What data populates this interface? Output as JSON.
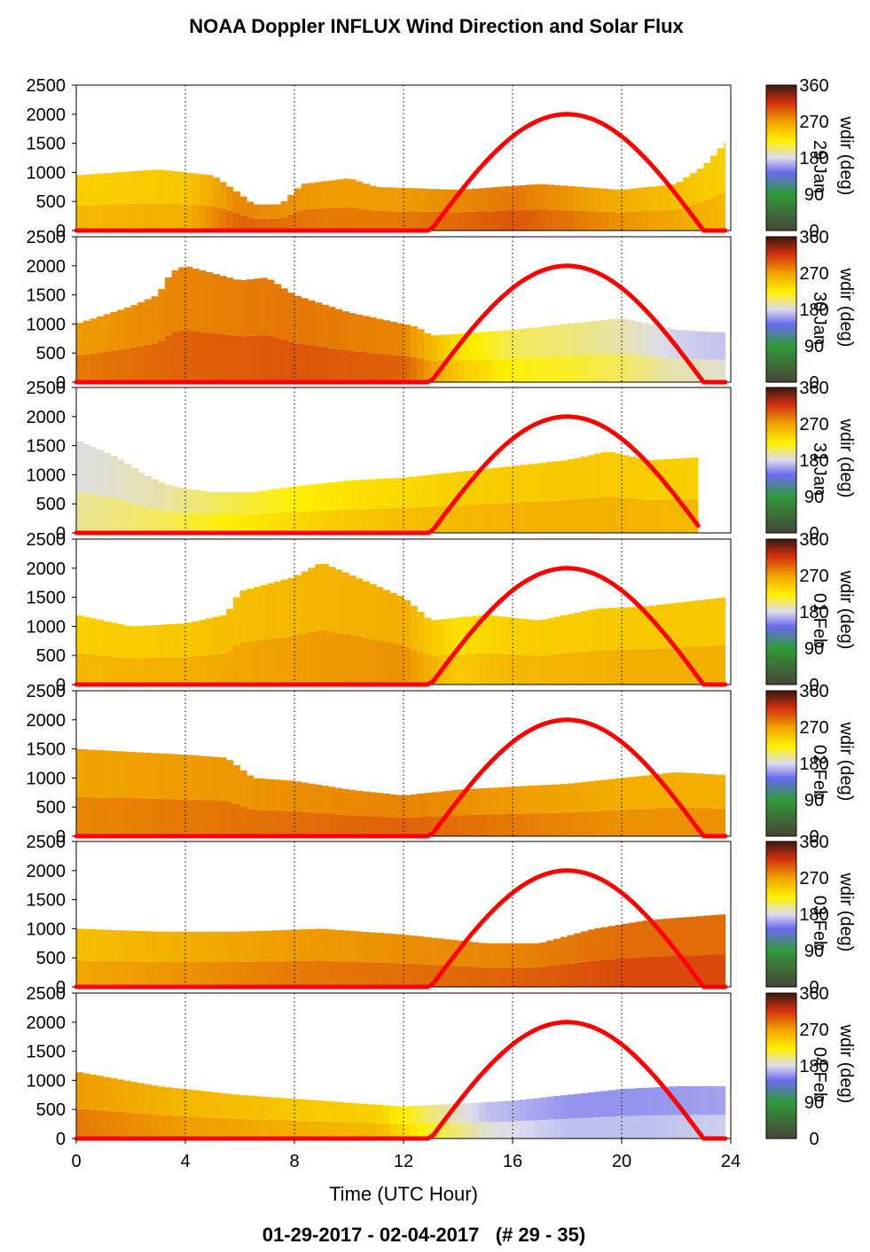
{
  "title": "NOAA Doppler INFLUX Wind Direction and Solar Flux",
  "footer": "01-29-2017 - 02-04-2017   (# 29 - 35)",
  "colors": {
    "flux_line": "#ff0000",
    "wind_ramp": [
      "#4a4438",
      "#2f9a3a",
      "#6b6bf0",
      "#dcdcee",
      "#fff000",
      "#f0a000",
      "#d23010",
      "#3a1a10"
    ]
  },
  "chart_data": {
    "type": "heatmap",
    "xlabel": "Time (UTC Hour)",
    "ylabel": "",
    "xlim": [
      0,
      24
    ],
    "ylim": [
      0,
      2500
    ],
    "x_ticks": [
      "0",
      "4",
      "8",
      "12",
      "16",
      "20",
      "24"
    ],
    "y_ticks": [
      "0",
      "500",
      "1000",
      "1500",
      "2000",
      "2500"
    ],
    "x_grid_lines": [
      4,
      8,
      12,
      16,
      20,
      24
    ],
    "colorbar": {
      "label": "wdir (deg)",
      "ticks": [
        "0",
        "90",
        "180",
        "270",
        "360"
      ],
      "range": [
        0,
        360
      ]
    },
    "solar_flux": {
      "peak_hour": 18,
      "peak_value": 2000,
      "sunrise_hour": 13,
      "sunset_hour": 23
    },
    "panels": [
      {
        "day_label": "29 Jan",
        "end_hour": 23.8,
        "top": [
          [
            0,
            950
          ],
          [
            1.5,
            1000
          ],
          [
            3,
            1050
          ],
          [
            5,
            950
          ],
          [
            5.8,
            700
          ],
          [
            6.5,
            450
          ],
          [
            7.5,
            450
          ],
          [
            8.3,
            800
          ],
          [
            10,
            900
          ],
          [
            11,
            750
          ],
          [
            14,
            700
          ],
          [
            17,
            800
          ],
          [
            20,
            700
          ],
          [
            22,
            800
          ],
          [
            23,
            1100
          ],
          [
            23.8,
            1500
          ]
        ],
        "dir": [
          [
            0,
            250
          ],
          [
            4,
            255
          ],
          [
            6,
            290
          ],
          [
            9,
            280
          ],
          [
            12,
            280
          ],
          [
            16,
            295
          ],
          [
            20,
            270
          ],
          [
            23.8,
            250
          ]
        ]
      },
      {
        "day_label": "30 Jan",
        "end_hour": 23.8,
        "top": [
          [
            0,
            1000
          ],
          [
            2,
            1300
          ],
          [
            3,
            1500
          ],
          [
            3.5,
            1900
          ],
          [
            4,
            2000
          ],
          [
            6,
            1750
          ],
          [
            7,
            1800
          ],
          [
            8,
            1500
          ],
          [
            10,
            1200
          ],
          [
            12.5,
            950
          ],
          [
            13,
            800
          ],
          [
            16,
            900
          ],
          [
            18,
            1000
          ],
          [
            20,
            1100
          ],
          [
            22,
            900
          ],
          [
            23.8,
            850
          ]
        ],
        "dir": [
          [
            0,
            280
          ],
          [
            4,
            290
          ],
          [
            8,
            295
          ],
          [
            12,
            290
          ],
          [
            14,
            240
          ],
          [
            16,
            215
          ],
          [
            18,
            210
          ],
          [
            20,
            200
          ],
          [
            22,
            185
          ],
          [
            23.8,
            180
          ]
        ]
      },
      {
        "day_label": "31 Jan",
        "end_hour": 22.8,
        "top": [
          [
            0,
            1600
          ],
          [
            1.5,
            1300
          ],
          [
            2.5,
            1000
          ],
          [
            3.5,
            800
          ],
          [
            5,
            700
          ],
          [
            6.5,
            700
          ],
          [
            8,
            800
          ],
          [
            10,
            900
          ],
          [
            12,
            950
          ],
          [
            14,
            1050
          ],
          [
            16,
            1150
          ],
          [
            18,
            1250
          ],
          [
            19.5,
            1400
          ],
          [
            21,
            1250
          ],
          [
            22.8,
            1300
          ]
        ],
        "dir": [
          [
            0,
            190
          ],
          [
            3,
            200
          ],
          [
            6,
            220
          ],
          [
            10,
            240
          ],
          [
            14,
            250
          ],
          [
            18,
            255
          ],
          [
            22.8,
            250
          ]
        ]
      },
      {
        "day_label": "01 Feb",
        "end_hour": 23.8,
        "top": [
          [
            0,
            1200
          ],
          [
            2,
            1000
          ],
          [
            4,
            1050
          ],
          [
            5.5,
            1200
          ],
          [
            6,
            1600
          ],
          [
            8,
            1850
          ],
          [
            9,
            2100
          ],
          [
            10.5,
            1800
          ],
          [
            12,
            1500
          ],
          [
            13,
            1100
          ],
          [
            15,
            1200
          ],
          [
            17,
            1100
          ],
          [
            19,
            1300
          ],
          [
            21,
            1350
          ],
          [
            23.8,
            1500
          ]
        ],
        "dir": [
          [
            0,
            250
          ],
          [
            4,
            255
          ],
          [
            8,
            265
          ],
          [
            12,
            270
          ],
          [
            14,
            240
          ],
          [
            16,
            250
          ],
          [
            20,
            255
          ],
          [
            23.8,
            255
          ]
        ]
      },
      {
        "day_label": "02 Feb",
        "end_hour": 23.8,
        "top": [
          [
            0,
            1500
          ],
          [
            2,
            1450
          ],
          [
            4,
            1400
          ],
          [
            5.5,
            1350
          ],
          [
            6.5,
            1000
          ],
          [
            8,
            950
          ],
          [
            10,
            800
          ],
          [
            12,
            700
          ],
          [
            14,
            800
          ],
          [
            16,
            850
          ],
          [
            18,
            900
          ],
          [
            20,
            1000
          ],
          [
            22,
            1100
          ],
          [
            23.8,
            1050
          ]
        ],
        "dir": [
          [
            0,
            275
          ],
          [
            4,
            280
          ],
          [
            8,
            285
          ],
          [
            12,
            290
          ],
          [
            16,
            280
          ],
          [
            20,
            270
          ],
          [
            23.8,
            270
          ]
        ]
      },
      {
        "day_label": "03 Feb",
        "end_hour": 23.8,
        "top": [
          [
            0,
            1000
          ],
          [
            3,
            950
          ],
          [
            6,
            950
          ],
          [
            9,
            1000
          ],
          [
            12,
            900
          ],
          [
            15,
            750
          ],
          [
            17,
            750
          ],
          [
            19,
            1000
          ],
          [
            21,
            1150
          ],
          [
            23.8,
            1250
          ]
        ],
        "dir": [
          [
            0,
            260
          ],
          [
            4,
            270
          ],
          [
            8,
            280
          ],
          [
            12,
            285
          ],
          [
            16,
            290
          ],
          [
            20,
            300
          ],
          [
            23.8,
            300
          ]
        ]
      },
      {
        "day_label": "04 Feb",
        "end_hour": 23.8,
        "top": [
          [
            0,
            1150
          ],
          [
            3,
            900
          ],
          [
            6,
            750
          ],
          [
            9,
            650
          ],
          [
            12,
            550
          ],
          [
            14,
            600
          ],
          [
            16,
            650
          ],
          [
            18,
            750
          ],
          [
            20,
            850
          ],
          [
            22,
            900
          ],
          [
            23.8,
            900
          ]
        ],
        "dir": [
          [
            0,
            280
          ],
          [
            4,
            265
          ],
          [
            8,
            255
          ],
          [
            11,
            250
          ],
          [
            13,
            210
          ],
          [
            15,
            180
          ],
          [
            18,
            165
          ],
          [
            21,
            165
          ],
          [
            23.8,
            170
          ]
        ]
      }
    ]
  }
}
